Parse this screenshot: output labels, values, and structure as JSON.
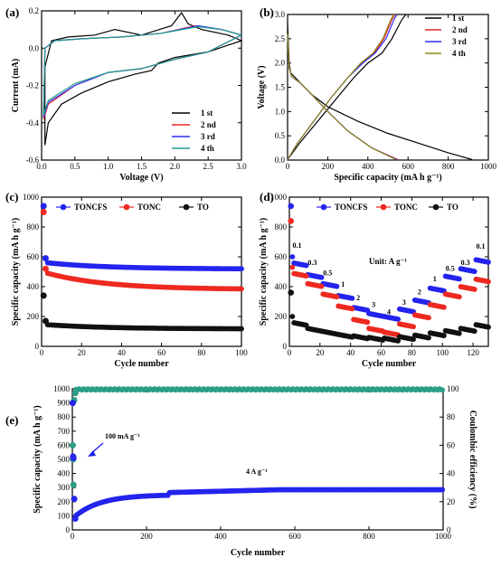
{
  "chart_data": [
    {
      "panel": "(a)",
      "type": "line",
      "xlabel": "Voltage (V)",
      "ylabel": "Current (mA)",
      "xlim": [
        0.0,
        3.0
      ],
      "ylim": [
        -0.6,
        0.2
      ],
      "xticks": [
        "0.0",
        "0.5",
        "1.0",
        "1.5",
        "2.0",
        "2.5",
        "3.0"
      ],
      "yticks": [
        "-0.6",
        "-0.4",
        "-0.2",
        "0.0",
        "0.2"
      ],
      "legend_position": "bottom-right",
      "series": [
        {
          "name": "1 st",
          "color": "#000000",
          "points": [
            [
              0.05,
              -0.52
            ],
            [
              0.1,
              -0.4
            ],
            [
              0.3,
              -0.3
            ],
            [
              0.6,
              -0.24
            ],
            [
              1.0,
              -0.18
            ],
            [
              1.4,
              -0.14
            ],
            [
              1.65,
              -0.12
            ],
            [
              1.75,
              -0.08
            ],
            [
              2.0,
              -0.05
            ],
            [
              2.5,
              -0.02
            ],
            [
              3.0,
              0.04
            ],
            [
              2.8,
              0.07
            ],
            [
              2.4,
              0.1
            ],
            [
              2.2,
              0.13
            ],
            [
              2.1,
              0.19
            ],
            [
              1.95,
              0.12
            ],
            [
              1.5,
              0.07
            ],
            [
              1.1,
              0.1
            ],
            [
              0.8,
              0.07
            ],
            [
              0.4,
              0.06
            ],
            [
              0.15,
              0.04
            ],
            [
              0.05,
              -0.1
            ],
            [
              0.05,
              -0.52
            ]
          ]
        },
        {
          "name": "2 nd",
          "color": "#e8262a",
          "points": [
            [
              0.03,
              -0.38
            ],
            [
              0.1,
              -0.3
            ],
            [
              0.5,
              -0.2
            ],
            [
              1.0,
              -0.13
            ],
            [
              1.5,
              -0.11
            ],
            [
              2.0,
              -0.06
            ],
            [
              2.5,
              -0.02
            ],
            [
              3.0,
              0.07
            ],
            [
              2.7,
              0.1
            ],
            [
              2.3,
              0.12
            ],
            [
              1.8,
              0.08
            ],
            [
              1.2,
              0.06
            ],
            [
              0.6,
              0.05
            ],
            [
              0.2,
              0.04
            ],
            [
              0.05,
              0.0
            ],
            [
              0.03,
              -0.38
            ]
          ]
        },
        {
          "name": "3 rd",
          "color": "#2d2df0",
          "points": [
            [
              0.03,
              -0.37
            ],
            [
              0.1,
              -0.29
            ],
            [
              0.5,
              -0.2
            ],
            [
              1.0,
              -0.13
            ],
            [
              1.5,
              -0.11
            ],
            [
              2.0,
              -0.06
            ],
            [
              2.5,
              -0.02
            ],
            [
              3.0,
              0.07
            ],
            [
              2.7,
              0.1
            ],
            [
              2.35,
              0.12
            ],
            [
              1.8,
              0.08
            ],
            [
              1.2,
              0.06
            ],
            [
              0.6,
              0.05
            ],
            [
              0.2,
              0.04
            ],
            [
              0.05,
              0.0
            ],
            [
              0.03,
              -0.37
            ]
          ]
        },
        {
          "name": "4 th",
          "color": "#1f9e8e",
          "points": [
            [
              0.03,
              -0.36
            ],
            [
              0.1,
              -0.28
            ],
            [
              0.5,
              -0.19
            ],
            [
              1.0,
              -0.13
            ],
            [
              1.5,
              -0.11
            ],
            [
              2.0,
              -0.06
            ],
            [
              2.5,
              -0.02
            ],
            [
              3.0,
              0.07
            ],
            [
              2.7,
              0.1
            ],
            [
              2.35,
              0.115
            ],
            [
              1.8,
              0.08
            ],
            [
              1.2,
              0.06
            ],
            [
              0.6,
              0.05
            ],
            [
              0.2,
              0.04
            ],
            [
              0.05,
              0.0
            ],
            [
              0.03,
              -0.36
            ]
          ]
        }
      ]
    },
    {
      "panel": "(b)",
      "type": "line",
      "xlabel": "Specific capacity (mA h g⁻¹)",
      "ylabel": "Voltage (V)",
      "xlim": [
        0,
        1000
      ],
      "ylim": [
        0.0,
        3.0
      ],
      "xticks": [
        "0",
        "200",
        "400",
        "600",
        "800",
        "1000"
      ],
      "yticks": [
        "0.0",
        "0.5",
        "1.0",
        "1.5",
        "2.0",
        "2.5",
        "3.0"
      ],
      "legend_position": "top-right",
      "series": [
        {
          "name": "1 st",
          "color": "#000000",
          "discharge": [
            [
              0,
              2.8
            ],
            [
              8,
              2.0
            ],
            [
              15,
              1.8
            ],
            [
              50,
              1.65
            ],
            [
              120,
              1.35
            ],
            [
              200,
              1.1
            ],
            [
              350,
              0.8
            ],
            [
              500,
              0.55
            ],
            [
              650,
              0.35
            ],
            [
              800,
              0.15
            ],
            [
              920,
              0.01
            ]
          ],
          "charge": [
            [
              0,
              0.01
            ],
            [
              60,
              0.35
            ],
            [
              150,
              0.8
            ],
            [
              250,
              1.3
            ],
            [
              330,
              1.7
            ],
            [
              400,
              2.0
            ],
            [
              470,
              2.2
            ],
            [
              520,
              2.5
            ],
            [
              570,
              2.9
            ],
            [
              590,
              3.0
            ]
          ]
        },
        {
          "name": "2 nd",
          "color": "#e8262a",
          "discharge": [
            [
              0,
              2.6
            ],
            [
              8,
              1.9
            ],
            [
              20,
              1.72
            ],
            [
              60,
              1.6
            ],
            [
              120,
              1.35
            ],
            [
              200,
              1.0
            ],
            [
              300,
              0.6
            ],
            [
              420,
              0.25
            ],
            [
              550,
              0.01
            ]
          ],
          "charge": [
            [
              0,
              0.01
            ],
            [
              50,
              0.35
            ],
            [
              130,
              0.8
            ],
            [
              220,
              1.3
            ],
            [
              300,
              1.7
            ],
            [
              370,
              2.0
            ],
            [
              430,
              2.2
            ],
            [
              480,
              2.5
            ],
            [
              520,
              2.9
            ],
            [
              535,
              3.0
            ]
          ]
        },
        {
          "name": "3 rd",
          "color": "#2d2df0",
          "discharge": [
            [
              0,
              2.6
            ],
            [
              8,
              1.9
            ],
            [
              20,
              1.72
            ],
            [
              60,
              1.6
            ],
            [
              120,
              1.35
            ],
            [
              200,
              1.0
            ],
            [
              300,
              0.6
            ],
            [
              420,
              0.25
            ],
            [
              545,
              0.01
            ]
          ],
          "charge": [
            [
              0,
              0.01
            ],
            [
              50,
              0.35
            ],
            [
              130,
              0.8
            ],
            [
              220,
              1.3
            ],
            [
              300,
              1.7
            ],
            [
              375,
              2.0
            ],
            [
              435,
              2.2
            ],
            [
              490,
              2.5
            ],
            [
              530,
              2.9
            ],
            [
              545,
              3.0
            ]
          ]
        },
        {
          "name": "4 th",
          "color": "#8a8a1a",
          "discharge": [
            [
              0,
              2.6
            ],
            [
              8,
              1.9
            ],
            [
              20,
              1.72
            ],
            [
              60,
              1.6
            ],
            [
              120,
              1.35
            ],
            [
              200,
              1.0
            ],
            [
              300,
              0.6
            ],
            [
              420,
              0.25
            ],
            [
              540,
              0.01
            ]
          ],
          "charge": [
            [
              0,
              0.01
            ],
            [
              50,
              0.35
            ],
            [
              130,
              0.8
            ],
            [
              220,
              1.3
            ],
            [
              300,
              1.7
            ],
            [
              365,
              2.0
            ],
            [
              425,
              2.2
            ],
            [
              475,
              2.5
            ],
            [
              515,
              2.9
            ],
            [
              530,
              3.0
            ]
          ]
        }
      ]
    },
    {
      "panel": "(c)",
      "type": "scatter",
      "xlabel": "Cycle number",
      "ylabel": "Specific capacity (mA h g⁻¹)",
      "xlim": [
        0,
        100
      ],
      "ylim": [
        0,
        1000
      ],
      "xticks": [
        "0",
        "20",
        "40",
        "60",
        "80",
        "100"
      ],
      "yticks": [
        "0",
        "200",
        "400",
        "600",
        "800",
        "1000"
      ],
      "legend_position": "top",
      "series": [
        {
          "name": "TONCFS",
          "color": "#2424ee",
          "first": [
            [
              1,
              940
            ],
            [
              2,
              590
            ]
          ],
          "start": 560,
          "end": 520
        },
        {
          "name": "TONC",
          "color": "#ee2a20",
          "first": [
            [
              1,
              900
            ],
            [
              2,
              520
            ]
          ],
          "start": 490,
          "end": 385
        },
        {
          "name": "TO",
          "color": "#111111",
          "first": [
            [
              1,
              340
            ],
            [
              2,
              170
            ]
          ],
          "start": 145,
          "end": 118
        }
      ]
    },
    {
      "panel": "(d)",
      "type": "scatter",
      "xlabel": "Cycle number",
      "ylabel": "Specific capacity (mA h g⁻¹)",
      "xlim": [
        0,
        130
      ],
      "ylim": [
        0,
        1000
      ],
      "xticks": [
        "0",
        "20",
        "40",
        "60",
        "80",
        "100",
        "120"
      ],
      "yticks": [
        "0",
        "200",
        "400",
        "600",
        "800",
        "1000"
      ],
      "legend_position": "top",
      "unit_label": "Unit: A g⁻¹",
      "rate_labels": [
        {
          "text": "0.1",
          "x": 5,
          "y": 660
        },
        {
          "text": "0.3",
          "x": 15,
          "y": 545
        },
        {
          "text": "0.5",
          "x": 25,
          "y": 475
        },
        {
          "text": "1",
          "x": 35,
          "y": 400
        },
        {
          "text": "2",
          "x": 45,
          "y": 310
        },
        {
          "text": "3",
          "x": 55,
          "y": 265
        },
        {
          "text": "4",
          "x": 65,
          "y": 215
        },
        {
          "text": "3",
          "x": 75,
          "y": 280
        },
        {
          "text": "2",
          "x": 85,
          "y": 350
        },
        {
          "text": "1",
          "x": 95,
          "y": 435
        },
        {
          "text": "0.5",
          "x": 105,
          "y": 505
        },
        {
          "text": "0.3",
          "x": 115,
          "y": 545
        },
        {
          "text": "0.1",
          "x": 125,
          "y": 655
        }
      ],
      "series": [
        {
          "name": "TONCFS",
          "color": "#2424ee",
          "first": 940,
          "segments": [
            560,
            480,
            420,
            340,
            260,
            220,
            200,
            250,
            310,
            390,
            470,
            520,
            580
          ]
        },
        {
          "name": "TONC",
          "color": "#ee2a20",
          "first": 840,
          "segments": [
            490,
            420,
            350,
            270,
            180,
            120,
            95,
            150,
            210,
            280,
            350,
            400,
            450
          ]
        },
        {
          "name": "TO",
          "color": "#111111",
          "first": 360,
          "segments": [
            160,
            120,
            100,
            80,
            70,
            60,
            55,
            65,
            75,
            90,
            105,
            120,
            145
          ]
        }
      ]
    },
    {
      "panel": "(e)",
      "type": "scatter",
      "xlabel": "Cycle number",
      "ylabel": "Specific capacity (mA h g⁻¹)",
      "y2label": "Coulombic efficiency (%)",
      "xlim": [
        0,
        1000
      ],
      "ylim": [
        0,
        1000
      ],
      "y2lim": [
        0,
        100
      ],
      "xticks": [
        "0",
        "200",
        "400",
        "600",
        "800",
        "1000"
      ],
      "yticks": [
        "0",
        "100",
        "200",
        "300",
        "400",
        "500",
        "600",
        "700",
        "800",
        "900",
        "1000"
      ],
      "y2ticks": [
        "0",
        "20",
        "40",
        "60",
        "80",
        "100"
      ],
      "annotations": [
        "100 mA g⁻¹",
        "4 A g⁻¹"
      ],
      "series": [
        {
          "name": "Capacity",
          "color": "#2424ee",
          "initial": [
            [
              1,
              900
            ],
            [
              2,
              520
            ],
            [
              3,
              510
            ],
            [
              5,
              220
            ],
            [
              8,
              80
            ]
          ],
          "recovery_end": [
            250,
            265
          ],
          "plateau": 285
        },
        {
          "name": "Coulombic efficiency",
          "color": "#2c9e86",
          "initial": [
            [
              1,
              60
            ],
            [
              2,
              50
            ],
            [
              3,
              32
            ],
            [
              5,
              92
            ],
            [
              8,
              97
            ]
          ],
          "plateau": 100
        }
      ]
    }
  ],
  "labels": {
    "a_panel": "(a)",
    "b_panel": "(b)",
    "c_panel": "(c)",
    "d_panel": "(d)",
    "e_panel": "(e)"
  }
}
